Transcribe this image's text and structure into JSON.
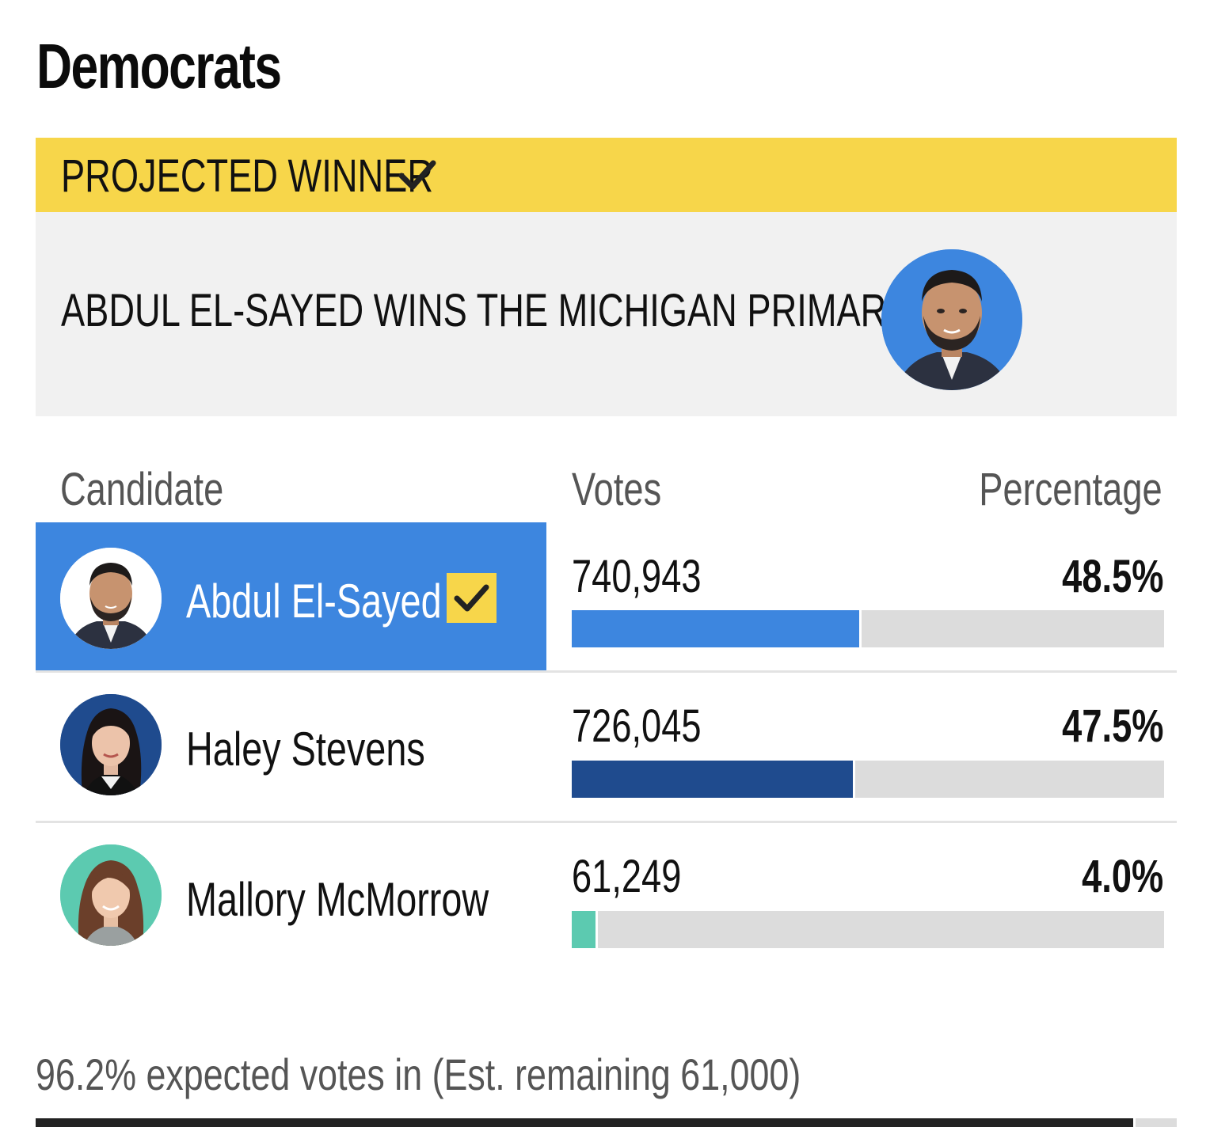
{
  "section": {
    "title": "Democrats"
  },
  "winner": {
    "banner_label": "PROJECTED WINNER",
    "headline": "ABDUL EL-SAYED WINS THE MICHIGAN PRIMARY",
    "banner_color": "#f7d64a",
    "box_color": "#f1f1f1",
    "photo_icon": "candidate-portrait-icon",
    "check_icon": "checkmark-icon"
  },
  "table": {
    "headers": {
      "candidate": "Candidate",
      "votes": "Votes",
      "percentage": "Percentage"
    }
  },
  "candidates": [
    {
      "name": "Abdul El-Sayed",
      "votes": "740,943",
      "percentage": "48.5%",
      "bar_fraction": 0.485,
      "bar_color": "#3d86df",
      "winner": true,
      "highlight_color": "#3d86df",
      "name_color": "#ffffff",
      "photo_bg": "#ffffff"
    },
    {
      "name": "Haley Stevens",
      "votes": "726,045",
      "percentage": "47.5%",
      "bar_fraction": 0.475,
      "bar_color": "#1f4b8e",
      "winner": false,
      "name_color": "#111111",
      "photo_bg": "#1f4b8e"
    },
    {
      "name": "Mallory McMorrow",
      "votes": "61,249",
      "percentage": "4.0%",
      "bar_fraction": 0.04,
      "bar_color": "#5ccab0",
      "winner": false,
      "name_color": "#111111",
      "photo_bg": "#5ccab0"
    }
  ],
  "footer": {
    "note": "96.2% expected votes in (Est. remaining 61,000)",
    "reported_fraction": 0.962,
    "bar_color": "#222222"
  }
}
